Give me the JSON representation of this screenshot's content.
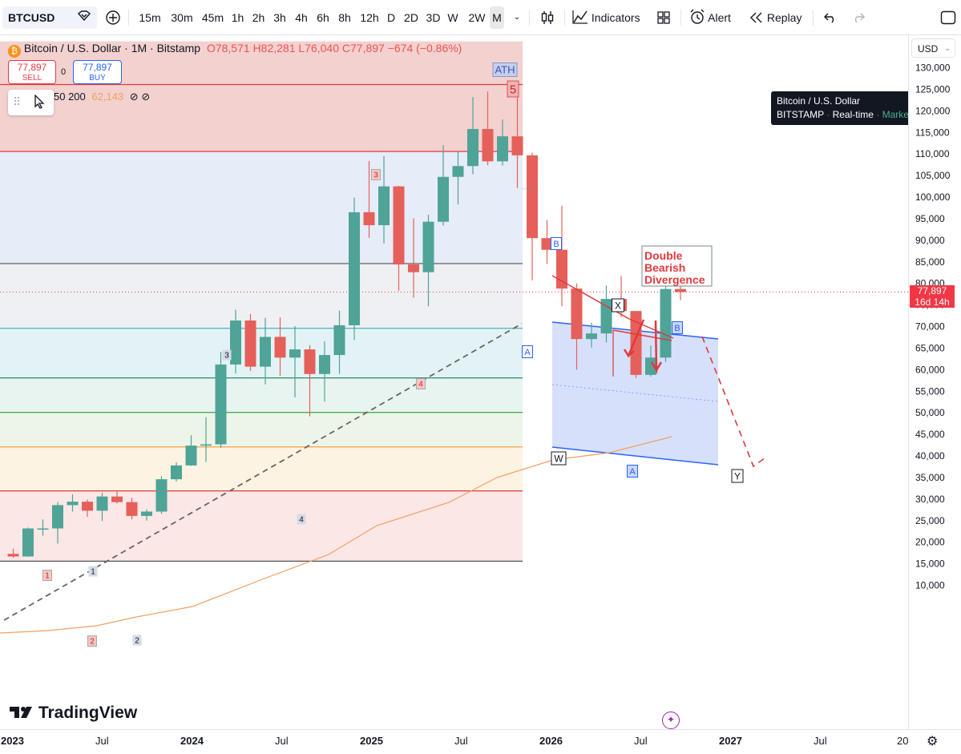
{
  "toolbar": {
    "symbol": "BTCUSD",
    "timeframes": [
      "15m",
      "30m",
      "45m",
      "1h",
      "2h",
      "3h",
      "4h",
      "6h",
      "8h",
      "12h",
      "D",
      "2D",
      "3D",
      "W",
      "2W",
      "M"
    ],
    "active_timeframe": "M",
    "indicators_label": "Indicators",
    "alert_label": "Alert",
    "replay_label": "Replay"
  },
  "legend": {
    "title": "Bitcoin / U.S. Dollar · 1M · Bitstamp",
    "open": "O78,571",
    "high": "H82,281",
    "low": "L76,040",
    "close": "C77,897",
    "change": "−674 (−0.86%)",
    "ma_values": "50 200",
    "ma_value": "62,143"
  },
  "trade": {
    "sell_price": "77,897",
    "sell_label": "SELL",
    "spread": "0",
    "buy_price": "77,897",
    "buy_label": "BUY"
  },
  "tooltip": {
    "line1": "Bitcoin / U.S. Dollar",
    "exchange": "BITSTAMP",
    "realtime": "Real-time",
    "market": "Market open"
  },
  "currency": "USD",
  "brand": "TradingView",
  "colors": {
    "up": "#4fa397",
    "down": "#e5605a",
    "resistance": "#e03a3e",
    "channel": "#2962ff",
    "ma": "#f0a060"
  },
  "chart_data": {
    "type": "candlestick",
    "title": "Bitcoin / U.S. Dollar · 1M · Bitstamp",
    "ylim": [
      6000,
      136000
    ],
    "y_ticks": [
      10000,
      15000,
      20000,
      25000,
      30000,
      35000,
      40000,
      45000,
      50000,
      55000,
      60000,
      65000,
      70000,
      75000,
      80000,
      85000,
      90000,
      95000,
      100000,
      105000,
      110000,
      115000,
      120000,
      125000,
      130000
    ],
    "x_labels": [
      "2023",
      "Jul",
      "2024",
      "Jul",
      "2025",
      "Jul",
      "2026",
      "Jul",
      "2027",
      "Jul",
      "20"
    ],
    "last_price": "77,897",
    "countdown": "16d 14h",
    "candles": [
      {
        "t": "2022-12",
        "o": 17200,
        "h": 18400,
        "l": 16300,
        "c": 16600
      },
      {
        "t": "2023-01",
        "o": 16600,
        "h": 23300,
        "l": 16500,
        "c": 23100
      },
      {
        "t": "2023-02",
        "o": 23100,
        "h": 25200,
        "l": 21400,
        "c": 23100
      },
      {
        "t": "2023-03",
        "o": 23100,
        "h": 29200,
        "l": 19600,
        "c": 28500
      },
      {
        "t": "2023-04",
        "o": 28500,
        "h": 31000,
        "l": 27000,
        "c": 29300
      },
      {
        "t": "2023-05",
        "o": 29300,
        "h": 29800,
        "l": 25800,
        "c": 27200
      },
      {
        "t": "2023-06",
        "o": 27200,
        "h": 31400,
        "l": 24800,
        "c": 30500
      },
      {
        "t": "2023-07",
        "o": 30500,
        "h": 31800,
        "l": 28900,
        "c": 29200
      },
      {
        "t": "2023-08",
        "o": 29200,
        "h": 30200,
        "l": 25200,
        "c": 26000
      },
      {
        "t": "2023-09",
        "o": 26000,
        "h": 27500,
        "l": 24900,
        "c": 27000
      },
      {
        "t": "2023-10",
        "o": 27000,
        "h": 35200,
        "l": 26500,
        "c": 34500
      },
      {
        "t": "2023-11",
        "o": 34500,
        "h": 38400,
        "l": 34000,
        "c": 37700
      },
      {
        "t": "2023-12",
        "o": 37700,
        "h": 44700,
        "l": 37600,
        "c": 42300
      },
      {
        "t": "2024-01",
        "o": 42300,
        "h": 48900,
        "l": 38500,
        "c": 42600
      },
      {
        "t": "2024-02",
        "o": 42600,
        "h": 64000,
        "l": 41800,
        "c": 61100
      },
      {
        "t": "2024-03",
        "o": 61100,
        "h": 73800,
        "l": 59000,
        "c": 71300
      },
      {
        "t": "2024-04",
        "o": 71300,
        "h": 72800,
        "l": 59600,
        "c": 60600
      },
      {
        "t": "2024-05",
        "o": 60600,
        "h": 71900,
        "l": 56500,
        "c": 67500
      },
      {
        "t": "2024-06",
        "o": 67500,
        "h": 72000,
        "l": 58500,
        "c": 62700
      },
      {
        "t": "2024-07",
        "o": 62700,
        "h": 70000,
        "l": 53500,
        "c": 64600
      },
      {
        "t": "2024-08",
        "o": 64600,
        "h": 65600,
        "l": 49100,
        "c": 58900
      },
      {
        "t": "2024-09",
        "o": 58900,
        "h": 66500,
        "l": 52500,
        "c": 63300
      },
      {
        "t": "2024-10",
        "o": 63300,
        "h": 73600,
        "l": 58900,
        "c": 70200
      },
      {
        "t": "2024-11",
        "o": 70200,
        "h": 99800,
        "l": 66800,
        "c": 96400
      },
      {
        "t": "2024-12",
        "o": 96400,
        "h": 108300,
        "l": 90500,
        "c": 93400
      },
      {
        "t": "2025-01",
        "o": 93400,
        "h": 109400,
        "l": 89200,
        "c": 102400
      },
      {
        "t": "2025-02",
        "o": 102400,
        "h": 102500,
        "l": 78200,
        "c": 84300
      },
      {
        "t": "2025-03",
        "o": 84300,
        "h": 95000,
        "l": 76600,
        "c": 82500
      },
      {
        "t": "2025-04",
        "o": 82500,
        "h": 95800,
        "l": 74600,
        "c": 94200
      },
      {
        "t": "2025-05",
        "o": 94200,
        "h": 111900,
        "l": 93300,
        "c": 104600
      },
      {
        "t": "2025-06",
        "o": 104600,
        "h": 110500,
        "l": 98200,
        "c": 107100
      },
      {
        "t": "2025-07",
        "o": 107100,
        "h": 123100,
        "l": 105200,
        "c": 115700
      },
      {
        "t": "2025-08",
        "o": 115700,
        "h": 124400,
        "l": 107300,
        "c": 108200
      },
      {
        "t": "2025-09",
        "o": 108200,
        "h": 117900,
        "l": 107200,
        "c": 114000
      },
      {
        "t": "2025-10",
        "o": 114000,
        "h": 126200,
        "l": 102000,
        "c": 109600
      },
      {
        "t": "2025-11",
        "o": 109600,
        "h": 110200,
        "l": 80600,
        "c": 90400
      },
      {
        "t": "2025-12",
        "o": 90400,
        "h": 94600,
        "l": 84400,
        "c": 87700
      },
      {
        "t": "2026-01",
        "o": 87700,
        "h": 97900,
        "l": 74600,
        "c": 78700
      },
      {
        "t": "2026-02",
        "o": 78700,
        "h": 79900,
        "l": 59900,
        "c": 67000
      },
      {
        "t": "2026-03",
        "o": 67000,
        "h": 70800,
        "l": 65000,
        "c": 68300
      },
      {
        "t": "2026-04",
        "o": 68300,
        "h": 79400,
        "l": 66200,
        "c": 76300
      },
      {
        "t": "2026-05",
        "o": 76300,
        "h": 81600,
        "l": 72000,
        "c": 73500
      },
      {
        "t": "2026-06",
        "o": 73500,
        "h": 73500,
        "l": 58000,
        "c": 58700
      },
      {
        "t": "2026-07",
        "o": 58700,
        "h": 65500,
        "l": 58300,
        "c": 62700
      },
      {
        "t": "2026-08",
        "o": 62700,
        "h": 79900,
        "l": 61700,
        "c": 78600
      },
      {
        "t": "2026-09",
        "o": 78600,
        "h": 82300,
        "l": 76000,
        "c": 77900
      }
    ],
    "ma_label": "62,143",
    "horizontal_levels": [
      126000,
      110500,
      84500,
      69500,
      58000,
      50000,
      42000,
      31800,
      15500
    ],
    "annotations": {
      "ath": "ATH",
      "wave5": "5",
      "wave3_red": "3",
      "wave3_dark": "3",
      "wave4_red": "4",
      "wave4_dark": "4",
      "wave1_red": "1",
      "wave1_dark": "1",
      "wave2_red": "2",
      "wave2_dark": "2",
      "a_top": "A",
      "b_top": "B",
      "x": "X",
      "b_right": "B",
      "w": "W",
      "a_bottom": "A",
      "y": "Y",
      "divergence_line1": "Double",
      "divergence_line2": "Bearish",
      "divergence_line3": "Divergence"
    }
  }
}
